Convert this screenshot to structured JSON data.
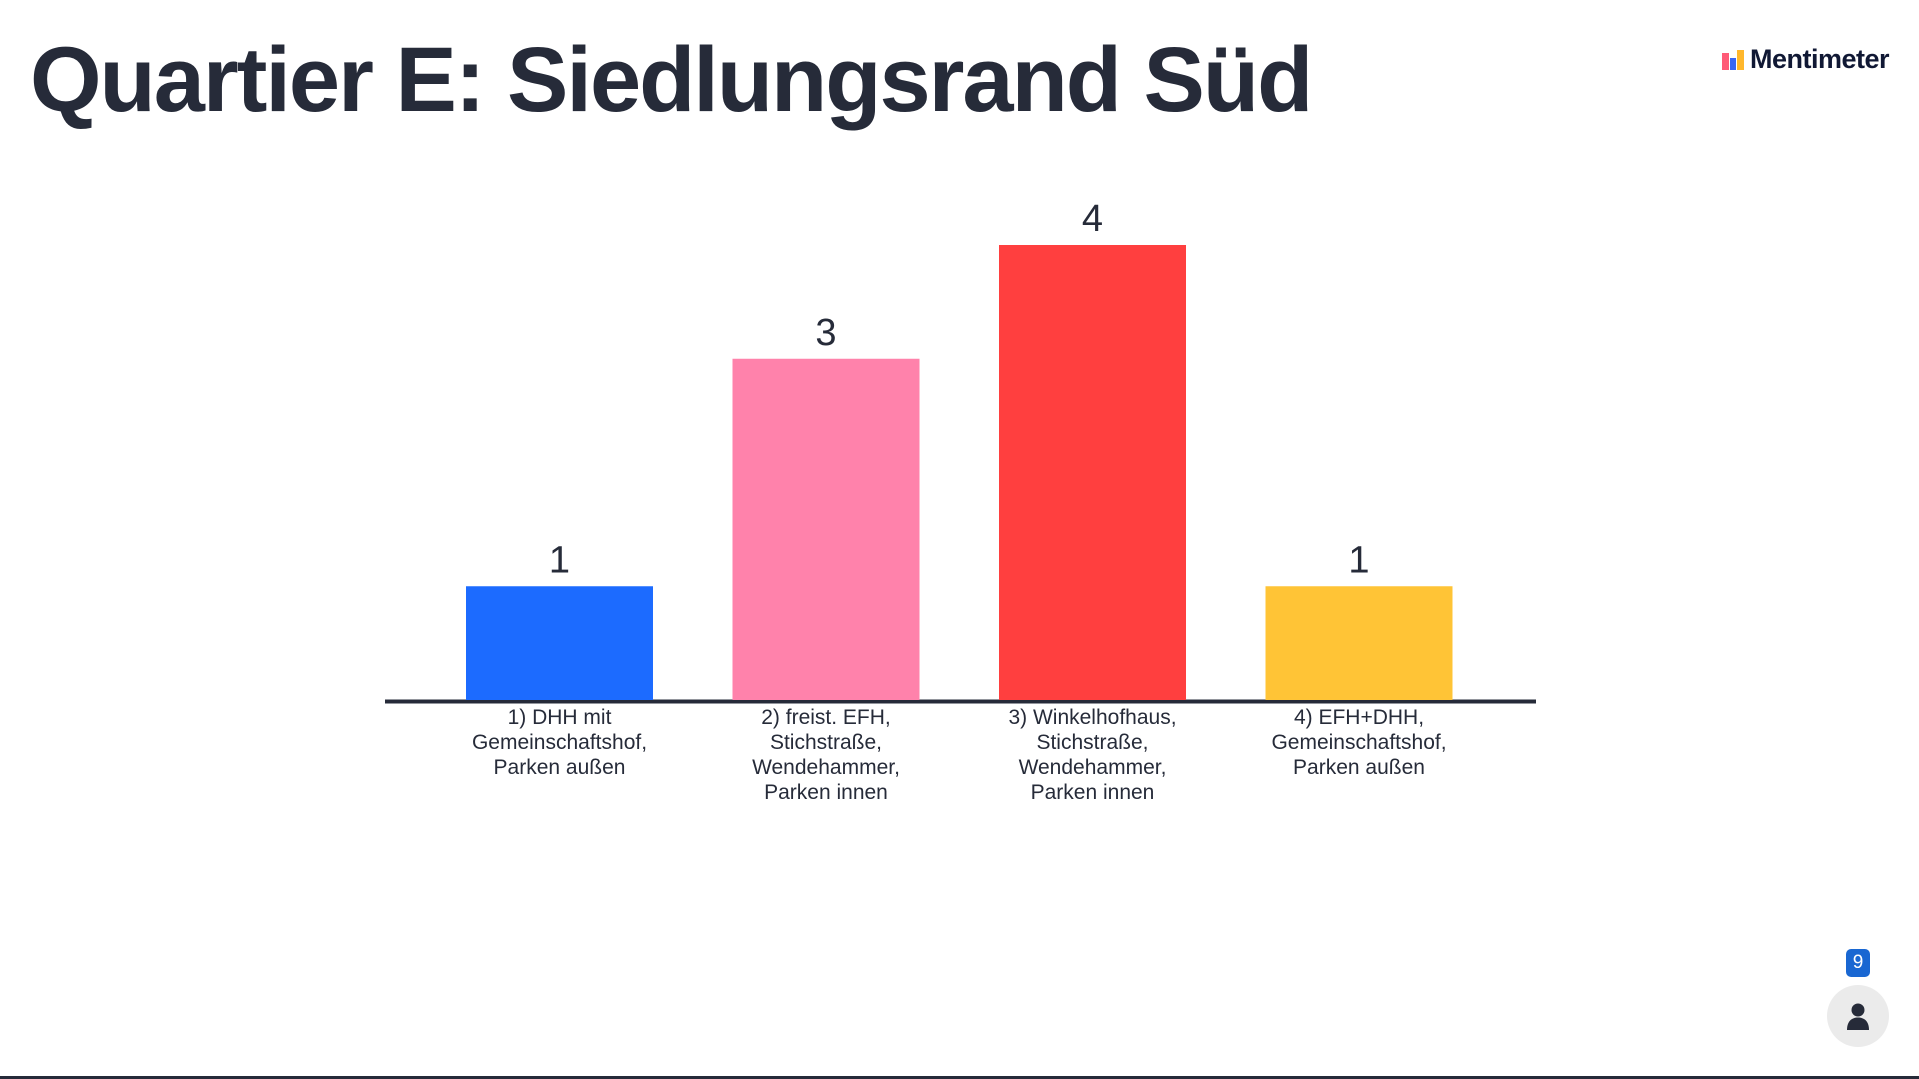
{
  "slide": {
    "title": "Quartier E: Siedlungsrand Süd"
  },
  "brand": {
    "name": "Mentimeter",
    "logo_icon": "mentimeter-logo-icon",
    "logo_colors": [
      "#ff5a77",
      "#3866f6",
      "#ffb72c"
    ]
  },
  "participants": {
    "count": "9",
    "icon": "person-icon",
    "badge_color": "#1967d2"
  },
  "chart_data": {
    "type": "bar",
    "categories": [
      "1) DHH mit Gemeinschaftshof, Parken außen",
      "2) freist. EFH, Stichstraße, Wendehammer, Parken innen",
      "3) Winkelhofhaus, Stichstraße, Wendehammer, Parken innen",
      "4) EFH+DHH, Gemeinschaftshof, Parken außen"
    ],
    "category_lines": [
      [
        "1) DHH mit",
        "Gemeinschaftshof,",
        "Parken außen"
      ],
      [
        "2) freist. EFH,",
        "Stichstraße,",
        "Wendehammer,",
        "Parken innen"
      ],
      [
        "3) Winkelhofhaus,",
        "Stichstraße,",
        "Wendehammer,",
        "Parken innen"
      ],
      [
        "4) EFH+DHH,",
        "Gemeinschaftshof,",
        "Parken außen"
      ]
    ],
    "values": [
      1,
      3,
      4,
      1
    ],
    "colors": [
      "#1c6bff",
      "#ff82ab",
      "#ff3f3f",
      "#ffc436"
    ],
    "ylim": [
      0,
      4
    ],
    "grid": false,
    "legend": "none",
    "data_labels": true
  }
}
